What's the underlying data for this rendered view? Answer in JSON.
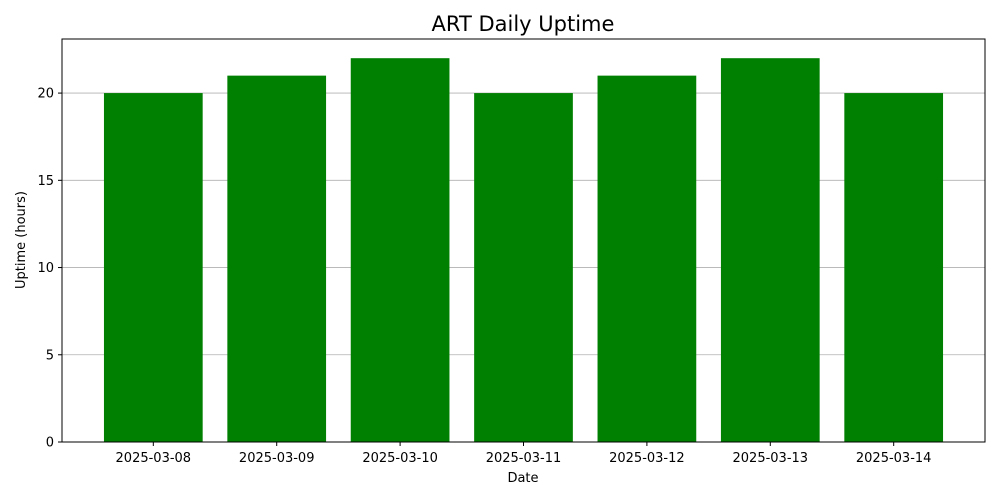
{
  "chart_data": {
    "type": "bar",
    "title": "ART Daily Uptime",
    "xlabel": "Date",
    "ylabel": "Uptime (hours)",
    "categories": [
      "2025-03-08",
      "2025-03-09",
      "2025-03-10",
      "2025-03-11",
      "2025-03-12",
      "2025-03-13",
      "2025-03-14"
    ],
    "values": [
      20,
      21,
      22,
      20,
      21,
      22,
      20
    ],
    "ylim": [
      0,
      23.1
    ],
    "yticks": [
      "0",
      "5",
      "10",
      "15",
      "20"
    ],
    "grid": "y-axis",
    "legend": "none",
    "bar_color": "#008000",
    "grid_color": "#b0b0b0"
  }
}
